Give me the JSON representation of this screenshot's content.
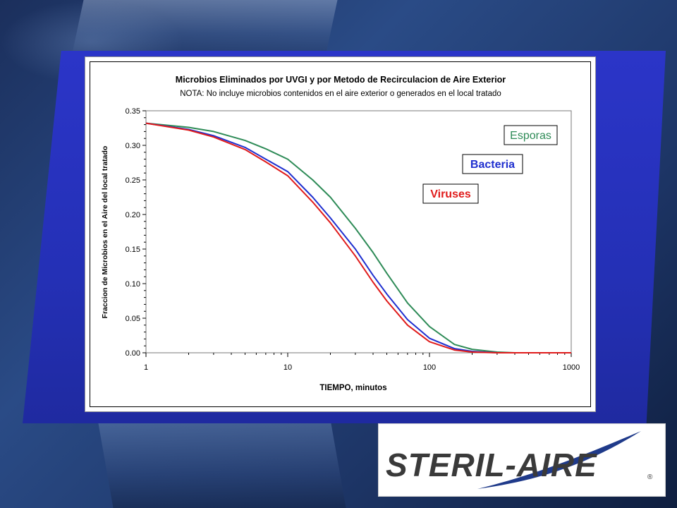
{
  "chart_data": {
    "type": "line",
    "title": "Microbios Eliminados por UVGI y por Metodo de Recirculacion de Aire Exterior",
    "subtitle": "NOTA: No incluye microbios contenidos en el aire exterior o generados en el local tratado",
    "xlabel": "TIEMPO, minutos",
    "ylabel": "Fraccion de Microbios en el Aire del local tratado",
    "x_scale": "log",
    "xlim": [
      1,
      1000
    ],
    "ylim": [
      0,
      0.35
    ],
    "x_ticks": [
      "1",
      "10",
      "100",
      "1000"
    ],
    "y_ticks": [
      "0.00",
      "0.05",
      "0.10",
      "0.15",
      "0.20",
      "0.25",
      "0.30",
      "0.35"
    ],
    "grid": false,
    "legend": "annotations",
    "series": [
      {
        "name": "Esporas",
        "color": "#2e8b57",
        "x": [
          1,
          2,
          3,
          5,
          7,
          10,
          15,
          20,
          30,
          40,
          50,
          70,
          100,
          150,
          200,
          300,
          400,
          600,
          1000
        ],
        "y": [
          0.332,
          0.326,
          0.32,
          0.307,
          0.295,
          0.28,
          0.25,
          0.225,
          0.18,
          0.145,
          0.115,
          0.072,
          0.038,
          0.012,
          0.005,
          0.001,
          0.0,
          0.0,
          0.0
        ]
      },
      {
        "name": "Bacteria",
        "color": "#1f2fcf",
        "x": [
          1,
          2,
          3,
          5,
          7,
          10,
          15,
          20,
          30,
          40,
          50,
          70,
          100,
          150,
          200,
          300,
          400,
          600,
          1000
        ],
        "y": [
          0.332,
          0.323,
          0.314,
          0.297,
          0.28,
          0.262,
          0.225,
          0.195,
          0.15,
          0.112,
          0.085,
          0.048,
          0.021,
          0.006,
          0.002,
          0.0,
          0.0,
          0.0,
          0.0
        ]
      },
      {
        "name": "Viruses",
        "color": "#e01b1b",
        "x": [
          1,
          2,
          3,
          5,
          7,
          10,
          15,
          20,
          30,
          40,
          50,
          70,
          100,
          150,
          200,
          300,
          400,
          600,
          1000
        ],
        "y": [
          0.332,
          0.322,
          0.312,
          0.294,
          0.276,
          0.256,
          0.218,
          0.188,
          0.14,
          0.102,
          0.075,
          0.04,
          0.016,
          0.004,
          0.001,
          0.0,
          0.0,
          0.0,
          0.0
        ]
      }
    ],
    "annotations": [
      {
        "text": "Esporas",
        "color": "#2e8b57",
        "bold": false
      },
      {
        "text": "Bacteria",
        "color": "#1f2fcf",
        "bold": true
      },
      {
        "text": "Viruses",
        "color": "#e01b1b",
        "bold": true
      }
    ]
  },
  "logo": {
    "text": "STERIL-AIRE",
    "registered": "®",
    "color": "#3a3a3a",
    "swoosh_color": "#1f3a8a"
  }
}
